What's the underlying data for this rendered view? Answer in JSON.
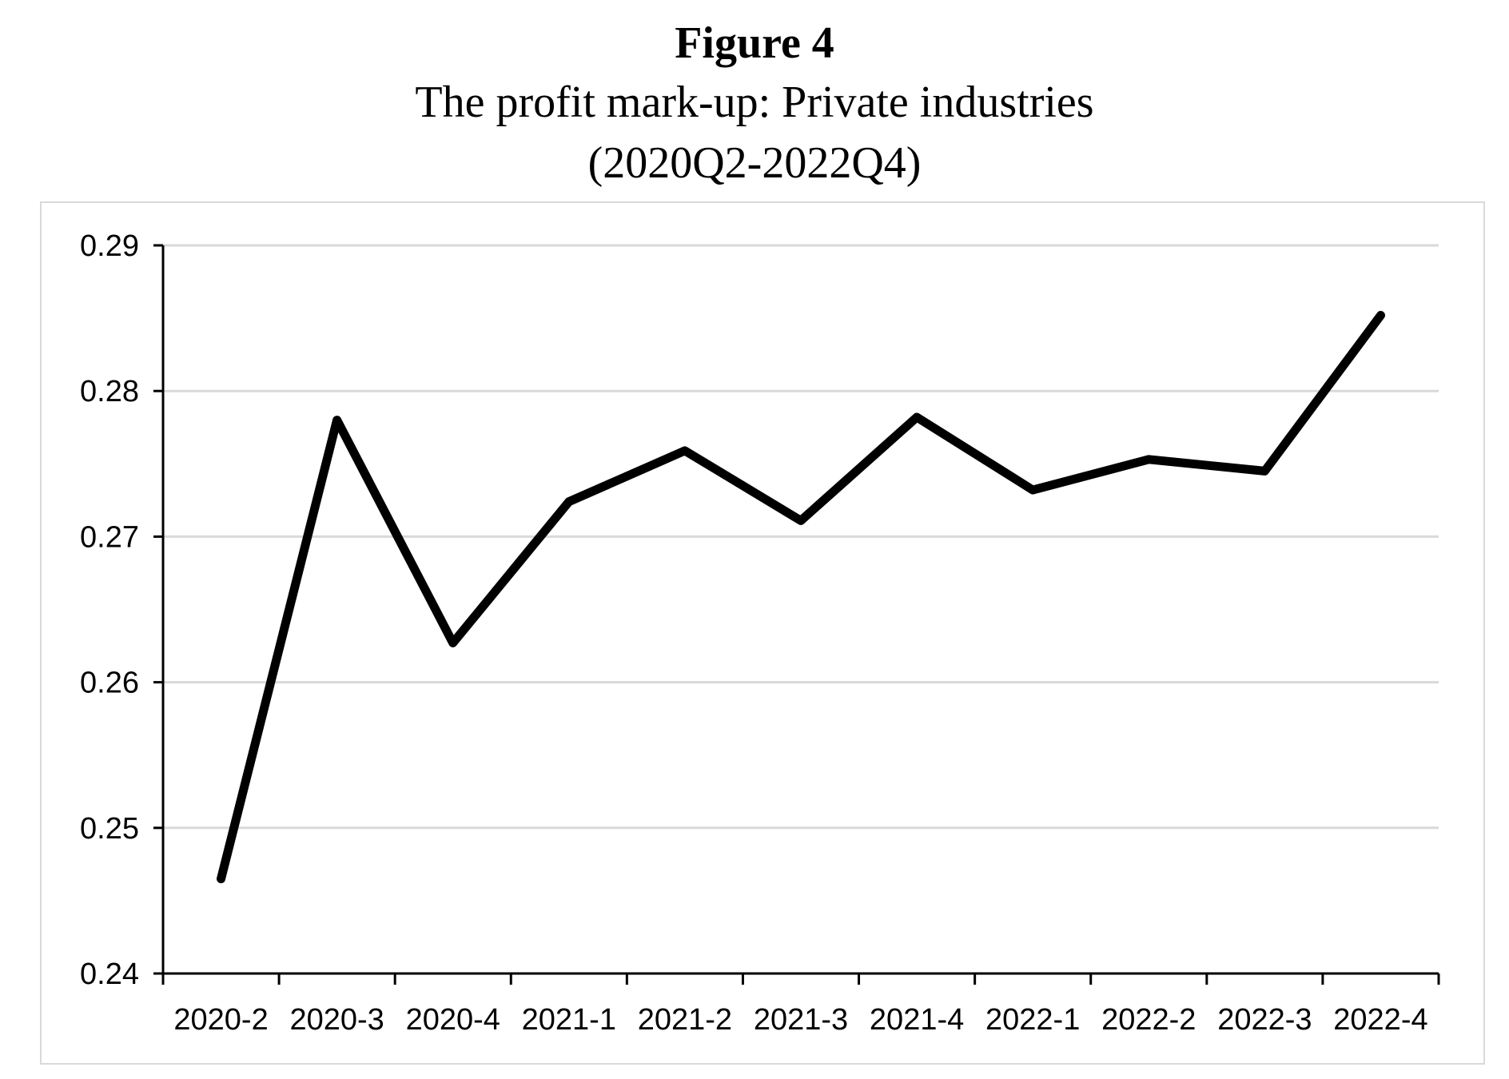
{
  "figure": {
    "number": "Figure 4",
    "title": "The profit mark-up: Private industries",
    "subtitle": "(2020Q2-2022Q4)"
  },
  "chart_data": {
    "type": "line",
    "title": "The profit mark-up: Private industries",
    "subtitle": "(2020Q2-2022Q4)",
    "xlabel": "",
    "ylabel": "",
    "categories": [
      "2020-2",
      "2020-3",
      "2020-4",
      "2021-1",
      "2021-2",
      "2021-3",
      "2021-4",
      "2022-1",
      "2022-2",
      "2022-3",
      "2022-4"
    ],
    "series": [
      {
        "values": [
          0.2465,
          0.278,
          0.2627,
          0.2724,
          0.2759,
          0.2711,
          0.2782,
          0.2732,
          0.2753,
          0.2745,
          0.2852
        ]
      }
    ],
    "ylim": [
      0.24,
      0.29
    ],
    "yticks": [
      "0.24",
      "0.25",
      "0.26",
      "0.27",
      "0.28",
      "0.29"
    ],
    "grid": true,
    "legend": "none",
    "colors": {
      "line": "#000000",
      "grid": "#d9d9d9",
      "axis": "#000000",
      "frame": "#d9d9d9"
    }
  }
}
